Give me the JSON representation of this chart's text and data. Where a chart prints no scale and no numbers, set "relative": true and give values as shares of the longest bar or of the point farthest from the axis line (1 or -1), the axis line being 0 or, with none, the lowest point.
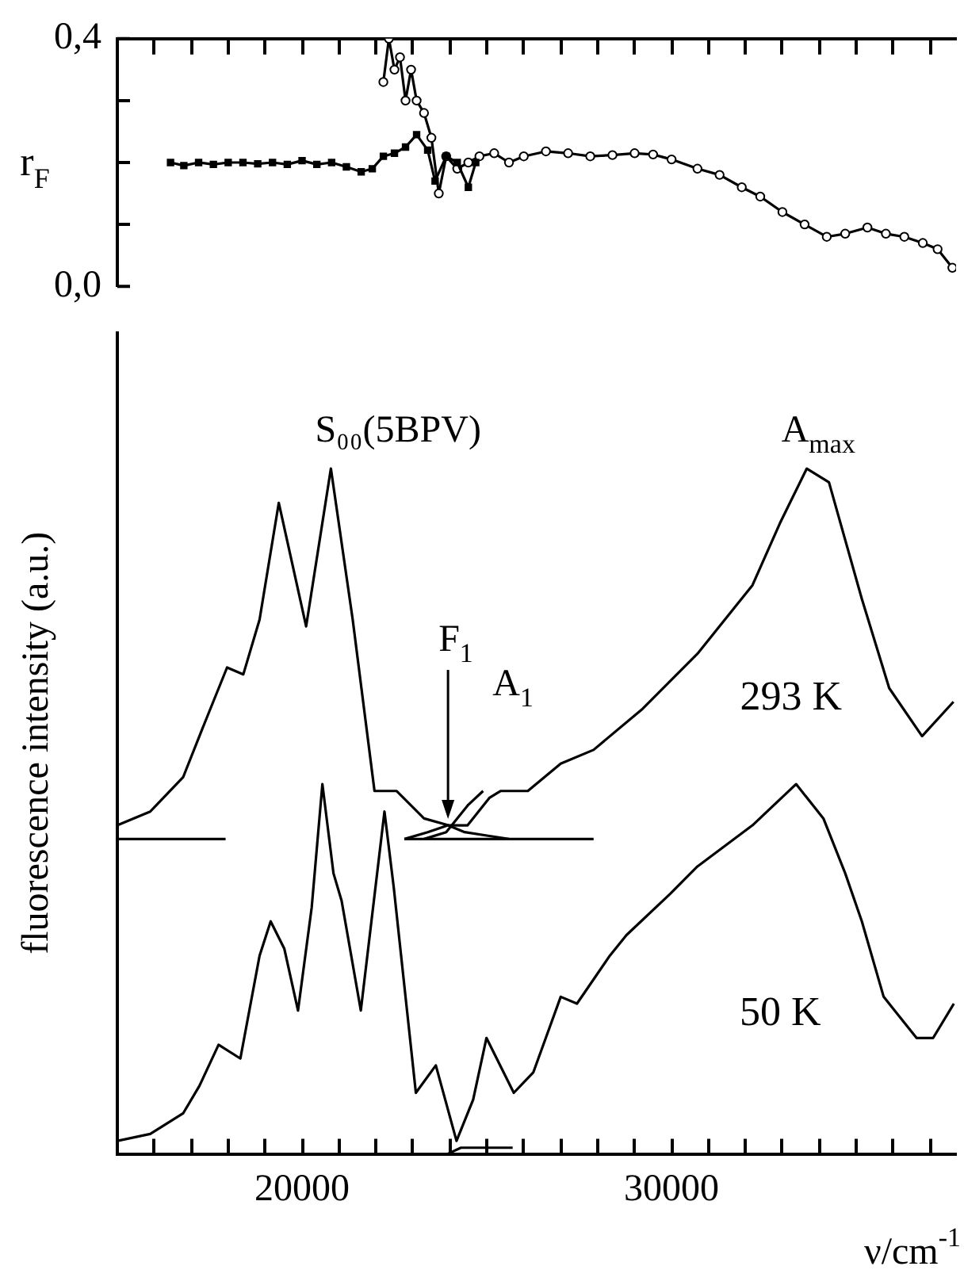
{
  "chart_data": [
    {
      "type": "line",
      "ylabel": "r$_{F}$",
      "xlim": [
        15000,
        37700
      ],
      "ylim": [
        0,
        0.4
      ],
      "tick_labels": "y",
      "legend": false,
      "xticks": [
        {
          "value": 15000,
          "label": null
        },
        {
          "value": 16000,
          "label": null
        },
        {
          "value": 17000,
          "label": null
        },
        {
          "value": 18000,
          "label": null
        },
        {
          "value": 19000,
          "label": null
        },
        {
          "value": 20000,
          "label": null
        },
        {
          "value": 21000,
          "label": null
        },
        {
          "value": 22000,
          "label": null
        },
        {
          "value": 23000,
          "label": null
        },
        {
          "value": 24000,
          "label": null
        },
        {
          "value": 25000,
          "label": null
        },
        {
          "value": 26000,
          "label": null
        },
        {
          "value": 27000,
          "label": null
        },
        {
          "value": 28000,
          "label": null
        },
        {
          "value": 29000,
          "label": null
        },
        {
          "value": 30000,
          "label": null
        },
        {
          "value": 31000,
          "label": null
        },
        {
          "value": 32000,
          "label": null
        },
        {
          "value": 33000,
          "label": null
        },
        {
          "value": 34000,
          "label": null
        },
        {
          "value": 35000,
          "label": null
        },
        {
          "value": 36000,
          "label": null
        },
        {
          "value": 37000,
          "label": null
        }
      ],
      "yticks": [
        {
          "value": 0,
          "label": "0,0"
        },
        {
          "value": 0.1,
          "label": null
        },
        {
          "value": 0.2,
          "label": null
        },
        {
          "value": 0.3,
          "label": null
        },
        {
          "value": 0.4,
          "label": "0,4"
        }
      ],
      "series": [
        {
          "color": "#000000",
          "marker": "square",
          "x": [
            16440,
            16800,
            17200,
            17600,
            18000,
            18400,
            18800,
            19200,
            19600,
            20000,
            20400,
            20800,
            21200,
            21600,
            21900,
            22200,
            22500,
            22800,
            23100,
            23400,
            23600,
            23900,
            24200,
            24500,
            24700
          ],
          "values": [
            0.2,
            0.195,
            0.2,
            0.197,
            0.2,
            0.2,
            0.198,
            0.2,
            0.197,
            0.203,
            0.197,
            0.2,
            0.193,
            0.185,
            0.19,
            0.21,
            0.215,
            0.225,
            0.245,
            0.22,
            0.17,
            0.21,
            0.2,
            0.16,
            0.2
          ]
        },
        {
          "color": "#000000",
          "marker": "circle",
          "x": [
            22200,
            22350,
            22500,
            22650,
            22800,
            22950,
            23100,
            23300,
            23500,
            23700,
            23900,
            24200,
            24500,
            24800,
            25200,
            25600,
            26000,
            26600,
            27200,
            27800,
            28400,
            29000,
            29500,
            30000,
            30700,
            31300,
            31900,
            32400,
            33000,
            33600,
            34200,
            34700,
            35300,
            35800,
            36300,
            36800,
            37200,
            37600
          ],
          "values": [
            0.33,
            0.4,
            0.35,
            0.37,
            0.3,
            0.35,
            0.3,
            0.28,
            0.24,
            0.15,
            0.21,
            0.19,
            0.2,
            0.21,
            0.215,
            0.2,
            0.21,
            0.218,
            0.215,
            0.21,
            0.212,
            0.215,
            0.213,
            0.205,
            0.19,
            0.18,
            0.16,
            0.145,
            0.12,
            0.1,
            0.08,
            0.085,
            0.095,
            0.085,
            0.08,
            0.07,
            0.06,
            0.03
          ]
        }
      ]
    },
    {
      "type": "line",
      "relative": true,
      "ylabel": "fluorescence intensity (a.u.)",
      "xlabel": "ν/cm$^{-1}$",
      "xlim": [
        15000,
        37700
      ],
      "tick_labels": "x",
      "legend": false,
      "xticks": [
        {
          "value": 15000,
          "label": null
        },
        {
          "value": 16000,
          "label": null
        },
        {
          "value": 17000,
          "label": null
        },
        {
          "value": 18000,
          "label": null
        },
        {
          "value": 19000,
          "label": null
        },
        20000,
        {
          "value": 21000,
          "label": null
        },
        {
          "value": 22000,
          "label": null
        },
        {
          "value": 23000,
          "label": null
        },
        {
          "value": 24000,
          "label": null
        },
        {
          "value": 25000,
          "label": null
        },
        {
          "value": 26000,
          "label": null
        },
        {
          "value": 27000,
          "label": null
        },
        {
          "value": 28000,
          "label": null
        },
        {
          "value": 29000,
          "label": null
        },
        30000,
        {
          "value": 31000,
          "label": null
        },
        {
          "value": 32000,
          "label": null
        },
        {
          "value": 33000,
          "label": null
        },
        {
          "value": 34000,
          "label": null
        },
        {
          "value": 35000,
          "label": null
        },
        {
          "value": 36000,
          "label": null
        },
        {
          "value": 37000,
          "label": null
        }
      ],
      "annotations": [
        {
          "text": "S₀₀(5BPV)",
          "x": 20780,
          "y": 1.0
        },
        {
          "text": "F$_{1}$",
          "x": 23950,
          "y": 0.48
        },
        {
          "text": "A$_{1}$",
          "x": 25070,
          "y": 0.524
        },
        {
          "text": "A$_{max}$",
          "x": 33660,
          "y": 1.0
        }
      ],
      "series": [
        {
          "name": "293 K",
          "color": "#000000",
          "x": [
            15000,
            15890,
            16780,
            17370,
            17970,
            18410,
            18850,
            19370,
            20110,
            20780,
            21370,
            21960,
            22560,
            23300,
            23960,
            24480,
            25070,
            25370,
            26110,
            27000,
            27890,
            29220,
            30700,
            32190,
            32930,
            33660,
            34260,
            35150,
            35890,
            36780,
            37630
          ],
          "values": [
            0.48,
            0.5,
            0.55,
            0.63,
            0.71,
            0.7,
            0.78,
            0.95,
            0.77,
            1.0,
            0.78,
            0.53,
            0.53,
            0.49,
            0.48,
            0.48,
            0.52,
            0.53,
            0.53,
            0.57,
            0.59,
            0.65,
            0.73,
            0.83,
            0.92,
            1.0,
            0.98,
            0.81,
            0.68,
            0.61,
            0.66
          ]
        },
        {
          "color": "#000000",
          "x": [
            15000,
            17930,
            20000,
            22770,
            27890
          ],
          "values": [
            0.46,
            0.46,
            null,
            0.46,
            0.46
          ]
        },
        {
          "color": "#000000",
          "x": [
            22770,
            23400,
            23950,
            24400,
            25000,
            25600
          ],
          "values": [
            0.46,
            0.47,
            0.48,
            0.47,
            0.465,
            0.46
          ]
        },
        {
          "color": "#000000",
          "x": [
            23300,
            23900,
            24500,
            24900
          ],
          "values": [
            0.46,
            0.47,
            0.51,
            0.53
          ]
        },
        {
          "name": "50 K",
          "color": "#000000",
          "x": [
            15000,
            15890,
            16780,
            17220,
            17740,
            18330,
            18850,
            19150,
            19520,
            19890,
            20260,
            20550,
            20850,
            21070,
            21590,
            22230,
            22480,
            23080,
            23620,
            24180,
            24630,
            24990,
            25730,
            26260,
            27000,
            27440,
            28330,
            28780,
            29960,
            30700,
            32190,
            33370,
            34110,
            34700,
            35150,
            35740,
            36630,
            37080,
            37640
          ],
          "values": [
            0.02,
            0.03,
            0.06,
            0.1,
            0.16,
            0.14,
            0.29,
            0.34,
            0.3,
            0.21,
            0.36,
            0.54,
            0.41,
            0.37,
            0.21,
            0.5,
            0.39,
            0.09,
            0.13,
            0.02,
            0.08,
            0.17,
            0.09,
            0.12,
            0.23,
            0.22,
            0.29,
            0.32,
            0.38,
            0.42,
            0.48,
            0.54,
            0.49,
            0.41,
            0.34,
            0.23,
            0.17,
            0.17,
            0.22
          ]
        },
        {
          "color": "#000000",
          "x": [
            23900,
            24300,
            25000,
            25700
          ],
          "values": [
            0.0,
            0.01,
            0.01,
            0.01
          ]
        }
      ]
    }
  ]
}
